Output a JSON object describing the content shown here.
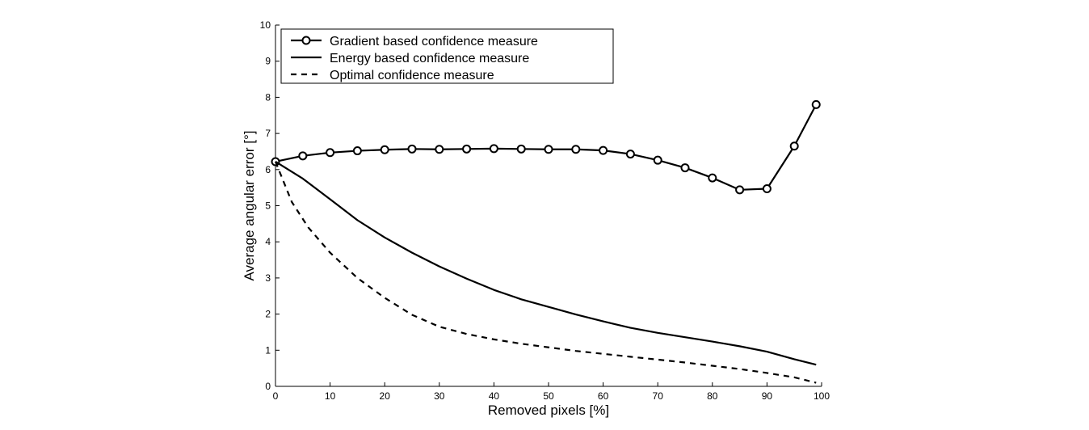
{
  "chart_data": {
    "type": "line",
    "title": "",
    "xlabel": "Removed pixels [%]",
    "ylabel": "Average angular error [°]",
    "xlim": [
      0,
      100
    ],
    "ylim": [
      0,
      10
    ],
    "xticks": [
      0,
      10,
      20,
      30,
      40,
      50,
      60,
      70,
      80,
      90,
      100
    ],
    "yticks": [
      0,
      1,
      2,
      3,
      4,
      5,
      6,
      7,
      8,
      9,
      10
    ],
    "grid": false,
    "legend_position": "top-left",
    "series": [
      {
        "name": "Gradient based confidence measure",
        "style": "solid-circle-markers",
        "x": [
          0,
          5,
          10,
          15,
          20,
          25,
          30,
          35,
          40,
          45,
          50,
          55,
          60,
          65,
          70,
          75,
          80,
          85,
          90,
          95,
          99
        ],
        "y": [
          6.22,
          6.38,
          6.47,
          6.52,
          6.55,
          6.57,
          6.56,
          6.57,
          6.58,
          6.57,
          6.56,
          6.56,
          6.53,
          6.43,
          6.26,
          6.05,
          5.77,
          5.44,
          5.47,
          6.65,
          7.8
        ]
      },
      {
        "name": "Energy based confidence measure",
        "style": "solid",
        "x": [
          0,
          5,
          10,
          15,
          20,
          25,
          30,
          35,
          40,
          45,
          50,
          55,
          60,
          65,
          70,
          75,
          80,
          85,
          90,
          95,
          99
        ],
        "y": [
          6.22,
          5.75,
          5.18,
          4.6,
          4.12,
          3.7,
          3.32,
          2.98,
          2.67,
          2.41,
          2.2,
          1.99,
          1.8,
          1.62,
          1.48,
          1.36,
          1.24,
          1.11,
          0.96,
          0.75,
          0.6
        ]
      },
      {
        "name": "Optimal confidence measure",
        "style": "dashed",
        "x": [
          0,
          3,
          6,
          10,
          15,
          20,
          25,
          30,
          35,
          40,
          45,
          50,
          55,
          60,
          65,
          70,
          75,
          80,
          85,
          90,
          95,
          99
        ],
        "y": [
          6.22,
          5.1,
          4.4,
          3.7,
          3.0,
          2.45,
          1.98,
          1.65,
          1.45,
          1.3,
          1.18,
          1.08,
          0.98,
          0.9,
          0.82,
          0.74,
          0.66,
          0.57,
          0.48,
          0.37,
          0.25,
          0.1
        ]
      }
    ]
  }
}
